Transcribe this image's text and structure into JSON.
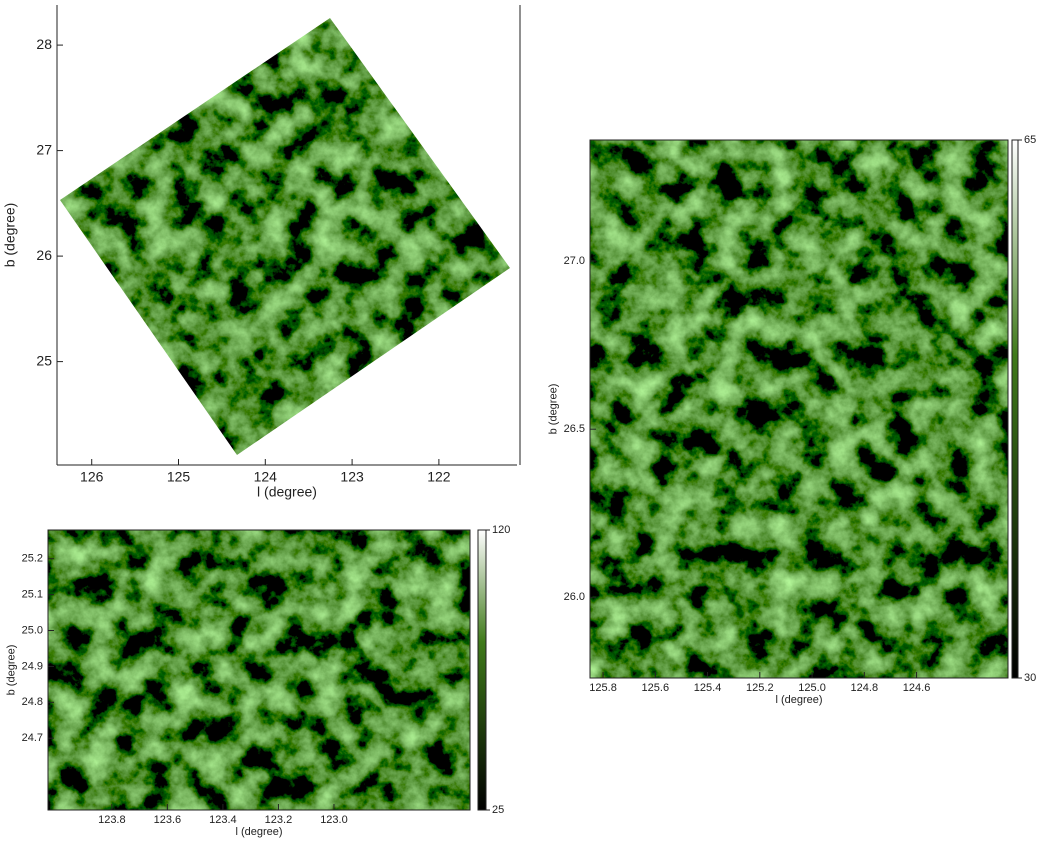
{
  "chart_data": [
    {
      "type": "image",
      "xlabel": "l (degree)",
      "ylabel": "b (degree)",
      "xlim": [
        126.4,
        121.1
      ],
      "ylim": [
        24.02,
        28.38
      ],
      "xticks": [
        126,
        125,
        124,
        123,
        122
      ],
      "yticks": [
        25,
        26,
        27,
        28
      ]
    },
    {
      "type": "image",
      "xlabel": "l (degree)",
      "ylabel": "b (degree)",
      "xlim": [
        124.03,
        122.51
      ],
      "ylim": [
        24.5,
        25.28
      ],
      "xticks": [
        123.8,
        123.6,
        123.4,
        123.2,
        {
          "value": 123,
          "label": "123.0"
        }
      ],
      "yticks": [
        24.7,
        24.8,
        24.9,
        {
          "value": 25,
          "label": "25.0"
        },
        25.1,
        25.2
      ],
      "clim": [
        25,
        120
      ],
      "cticks": [
        25,
        120
      ]
    },
    {
      "type": "image",
      "xlabel": "l (degree)",
      "ylabel": "b (degree)",
      "xlim": [
        125.85,
        124.25
      ],
      "ylim": [
        25.76,
        27.36
      ],
      "xticks": [
        125.8,
        125.6,
        125.4,
        125.2,
        {
          "value": 125,
          "label": "125.0"
        },
        124.8,
        124.6
      ],
      "yticks": [
        {
          "value": 26,
          "label": "26.0"
        },
        26.5,
        {
          "value": 27,
          "label": "27.0"
        }
      ],
      "clim": [
        30,
        65
      ],
      "cticks": [
        30,
        65
      ]
    }
  ]
}
